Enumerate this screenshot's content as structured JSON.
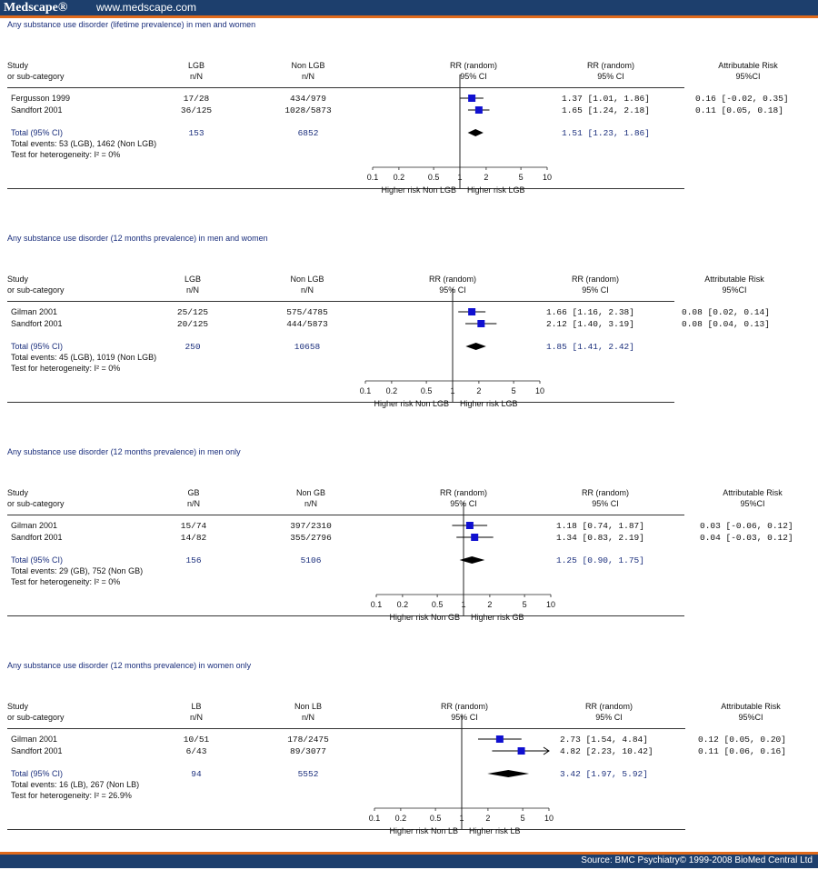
{
  "brand": "Medscape®",
  "site_url": "www.medscape.com",
  "source": "Source: BMC Psychiatry© 1999-2008 BioMed Central Ltd",
  "chart_data": [
    {
      "type": "forest",
      "title": "Any substance use disorder (lifetime prevalence) in men and women",
      "headers": {
        "study": "Study",
        "study_sub": "or sub-category",
        "group": "LGB",
        "group_sub": "n/N",
        "control": "Non LGB",
        "control_sub": "n/N",
        "plot": "RR (random)",
        "plot_sub": "95% CI",
        "rr": "RR (random)",
        "rr_sub": "95% CI",
        "ar": "Attributable Risk",
        "ar_sub": "95%CI"
      },
      "studies": [
        {
          "name": "Fergusson 1999",
          "group": "17/28",
          "control": "434/979",
          "rr": 1.37,
          "lo": 1.01,
          "hi": 1.86,
          "rr_text": "1.37 [1.01, 1.86]",
          "ar_text": "0.16 [-0.02, 0.35]"
        },
        {
          "name": "Sandfort 2001",
          "group": "36/125",
          "control": "1028/5873",
          "rr": 1.65,
          "lo": 1.24,
          "hi": 2.18,
          "rr_text": "1.65 [1.24, 2.18]",
          "ar_text": "0.11 [0.05, 0.18]"
        }
      ],
      "total": {
        "label": "Total (95% CI)",
        "group": "153",
        "control": "6852",
        "rr": 1.51,
        "lo": 1.23,
        "hi": 1.86,
        "rr_text": "1.51 [1.23, 1.86]"
      },
      "events": "Total events: 53 (LGB), 1462 (Non LGB)",
      "heterogeneity": "Test for heterogeneity:  I² = 0%",
      "ticks": [
        "0.1",
        "0.2",
        "0.5",
        "1",
        "2",
        "5",
        "10"
      ],
      "xlabel_left": "Higher risk Non LGB",
      "xlabel_right": "Higher risk LGB",
      "xscale": "log",
      "xlim": [
        0.1,
        10
      ]
    },
    {
      "type": "forest",
      "title": "Any substance use disorder (12 months prevalence) in men and women",
      "headers": {
        "study": "Study",
        "study_sub": "or sub-category",
        "group": "LGB",
        "group_sub": "n/N",
        "control": "Non LGB",
        "control_sub": "n/N",
        "plot": "RR (random)",
        "plot_sub": "95% CI",
        "rr": "RR (random)",
        "rr_sub": "95% CI",
        "ar": "Attributable Risk",
        "ar_sub": "95%CI"
      },
      "studies": [
        {
          "name": "Gilman 2001",
          "group": "25/125",
          "control": "575/4785",
          "rr": 1.66,
          "lo": 1.16,
          "hi": 2.38,
          "rr_text": "1.66 [1.16, 2.38]",
          "ar_text": "0.08 [0.02, 0.14]"
        },
        {
          "name": "Sandfort 2001",
          "group": "20/125",
          "control": "444/5873",
          "rr": 2.12,
          "lo": 1.4,
          "hi": 3.19,
          "rr_text": "2.12 [1.40, 3.19]",
          "ar_text": "0.08 [0.04, 0.13]"
        }
      ],
      "total": {
        "label": "Total (95% CI)",
        "group": "250",
        "control": "10658",
        "rr": 1.85,
        "lo": 1.41,
        "hi": 2.42,
        "rr_text": "1.85 [1.41, 2.42]"
      },
      "events": "Total events: 45 (LGB), 1019 (Non LGB)",
      "heterogeneity": "Test for heterogeneity:  I² = 0%",
      "ticks": [
        "0.1",
        "0.2",
        "0.5",
        "1",
        "2",
        "5",
        "10"
      ],
      "xlabel_left": "Higher risk Non LGB",
      "xlabel_right": "Higher risk LGB",
      "xscale": "log",
      "xlim": [
        0.1,
        10
      ]
    },
    {
      "type": "forest",
      "title": "Any substance use disorder (12 months prevalence) in men only",
      "headers": {
        "study": "Study",
        "study_sub": "or sub-category",
        "group": "GB",
        "group_sub": "n/N",
        "control": "Non GB",
        "control_sub": "n/N",
        "plot": "RR (random)",
        "plot_sub": "95% CI",
        "rr": "RR (random)",
        "rr_sub": "95% CI",
        "ar": "Attributable Risk",
        "ar_sub": "95%CI"
      },
      "studies": [
        {
          "name": "Gilman 2001",
          "group": "15/74",
          "control": "397/2310",
          "rr": 1.18,
          "lo": 0.74,
          "hi": 1.87,
          "rr_text": "1.18 [0.74, 1.87]",
          "ar_text": "0.03 [-0.06, 0.12]"
        },
        {
          "name": "Sandfort 2001",
          "group": "14/82",
          "control": "355/2796",
          "rr": 1.34,
          "lo": 0.83,
          "hi": 2.19,
          "rr_text": "1.34 [0.83, 2.19]",
          "ar_text": "0.04 [-0.03, 0.12]"
        }
      ],
      "total": {
        "label": "Total (95% CI)",
        "group": "156",
        "control": "5106",
        "rr": 1.25,
        "lo": 0.9,
        "hi": 1.75,
        "rr_text": "1.25 [0.90, 1.75]"
      },
      "events": "Total events: 29 (GB), 752 (Non GB)",
      "heterogeneity": "Test for heterogeneity:  I² = 0%",
      "ticks": [
        "0.1",
        "0.2",
        "0.5",
        "1",
        "2",
        "5",
        "10"
      ],
      "xlabel_left": "Higher risk Non GB",
      "xlabel_right": "Higher risk GB",
      "xscale": "log",
      "xlim": [
        0.1,
        10
      ]
    },
    {
      "type": "forest",
      "title": "Any substance use disorder (12 months prevalence) in women only",
      "headers": {
        "study": "Study",
        "study_sub": "or sub-category",
        "group": "LB",
        "group_sub": "n/N",
        "control": "Non LB",
        "control_sub": "n/N",
        "plot": "RR (random)",
        "plot_sub": "95% CI",
        "rr": "RR (random)",
        "rr_sub": "95% CI",
        "ar": "Attributable Risk",
        "ar_sub": "95%CI"
      },
      "studies": [
        {
          "name": "Gilman 2001",
          "group": "10/51",
          "control": "178/2475",
          "rr": 2.73,
          "lo": 1.54,
          "hi": 4.84,
          "rr_text": "2.73 [1.54, 4.84]",
          "ar_text": "0.12 [0.05, 0.20]"
        },
        {
          "name": "Sandfort 2001",
          "group": "6/43",
          "control": "89/3077",
          "rr": 4.82,
          "lo": 2.23,
          "hi": 10.42,
          "rr_text": "4.82 [2.23, 10.42]",
          "ar_text": "0.11 [0.06, 0.16]"
        }
      ],
      "total": {
        "label": "Total (95% CI)",
        "group": "94",
        "control": "5552",
        "rr": 3.42,
        "lo": 1.97,
        "hi": 5.92,
        "rr_text": "3.42 [1.97, 5.92]"
      },
      "events": "Total events: 16 (LB), 267 (Non LB)",
      "heterogeneity": "Test for heterogeneity:  I² = 26.9%",
      "ticks": [
        "0.1",
        "0.2",
        "0.5",
        "1",
        "2",
        "5",
        "10"
      ],
      "xlabel_left": "Higher risk Non LB",
      "xlabel_right": "Higher risk LB",
      "xscale": "log",
      "xlim": [
        0.1,
        10
      ]
    }
  ]
}
